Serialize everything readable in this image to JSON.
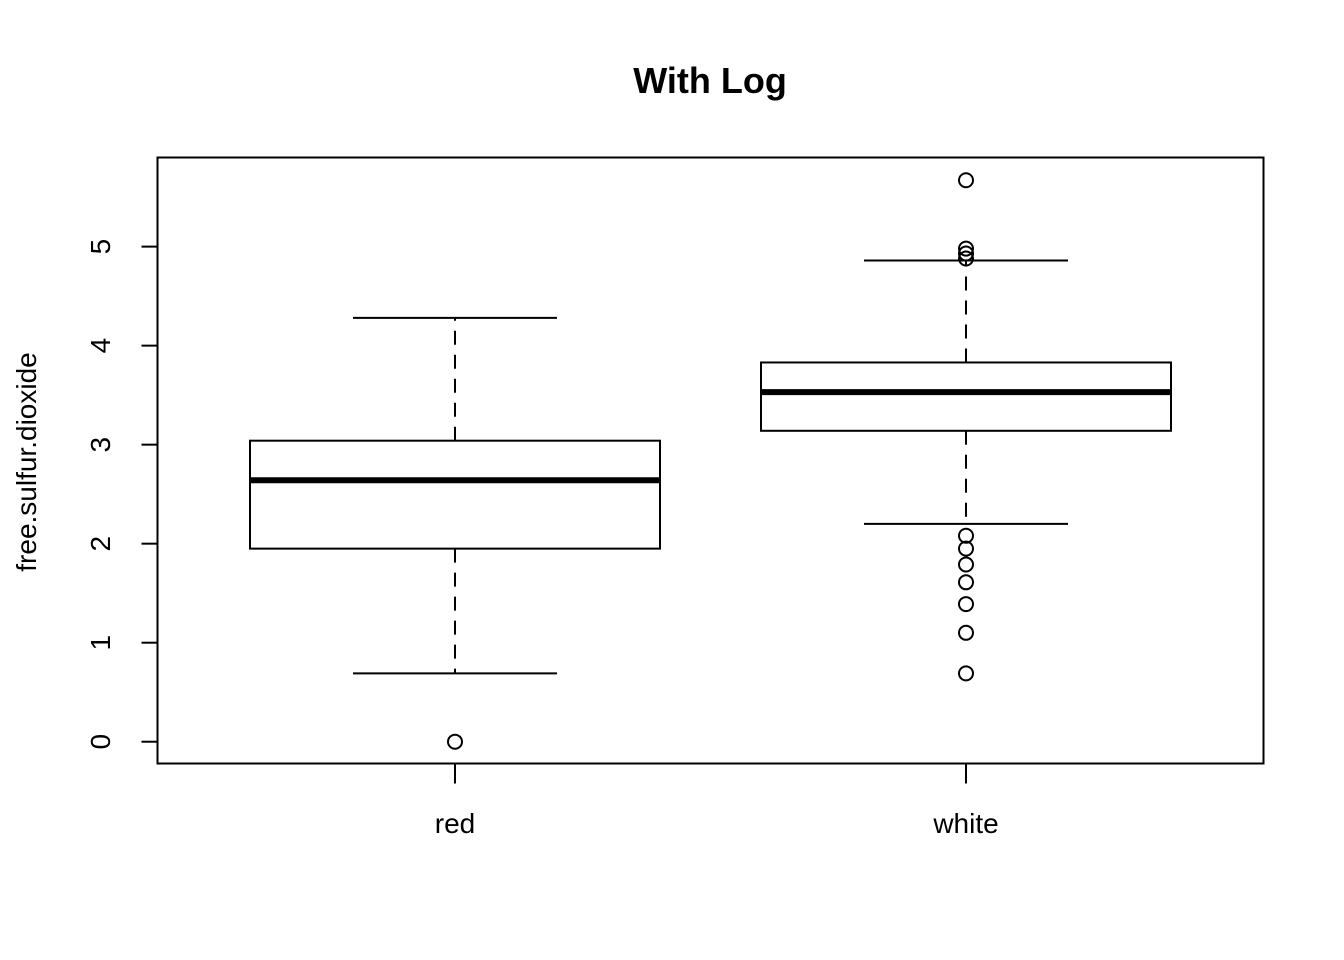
{
  "chart_data": {
    "type": "box",
    "title": "With Log",
    "xlabel": "",
    "ylabel": "free.sulfur.dioxide",
    "categories": [
      "red",
      "white"
    ],
    "ylim": [
      -0.22,
      5.9
    ],
    "yticks": [
      0,
      1,
      2,
      3,
      4,
      5
    ],
    "grid": false,
    "boxes": [
      {
        "category": "red",
        "whisker_low": 0.69,
        "q1": 1.95,
        "median": 2.64,
        "q3": 3.04,
        "whisker_high": 4.28,
        "outliers": [
          0.0
        ]
      },
      {
        "category": "white",
        "whisker_low": 2.2,
        "q1": 3.14,
        "median": 3.53,
        "q3": 3.83,
        "whisker_high": 4.86,
        "outliers": [
          5.67,
          4.98,
          4.93,
          4.88,
          2.08,
          1.95,
          1.79,
          1.61,
          1.39,
          1.1,
          0.69
        ]
      }
    ]
  }
}
